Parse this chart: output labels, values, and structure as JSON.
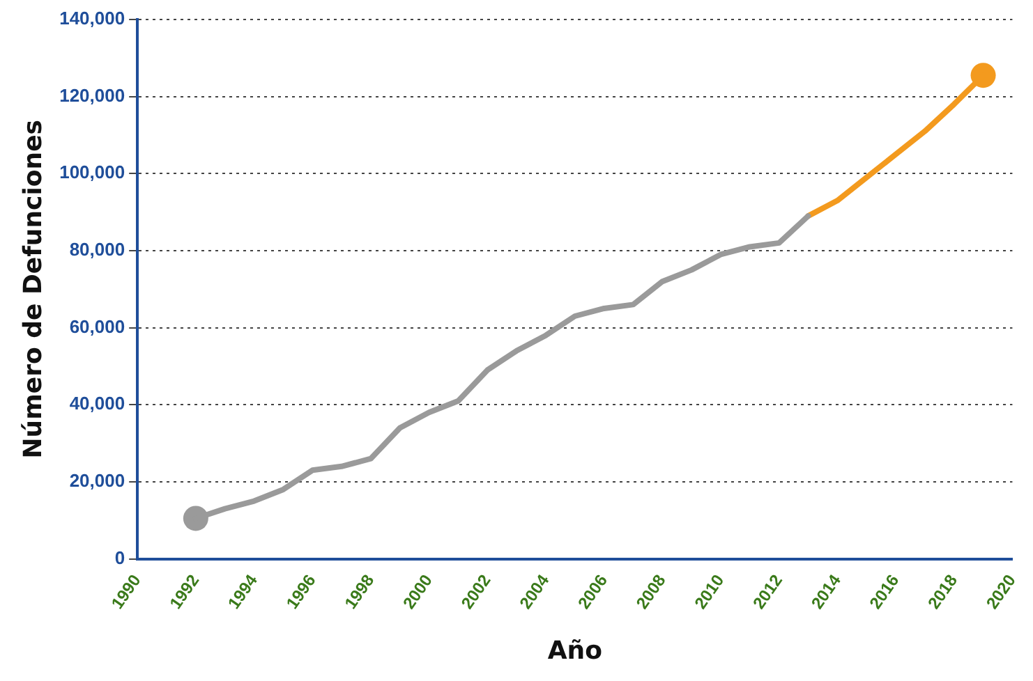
{
  "chart_data": {
    "type": "line",
    "xlabel": "Año",
    "ylabel": "Número de Defunciones",
    "series": [
      {
        "color": "#9a9a9a",
        "x": [
          1992,
          1993,
          1994,
          1995,
          1996,
          1997,
          1998,
          1999,
          2000,
          2001,
          2002,
          2003,
          2004,
          2005,
          2006,
          2007,
          2008,
          2009,
          2010,
          2011,
          2012,
          2013
        ],
        "values": [
          10500,
          13000,
          15000,
          18000,
          23000,
          24000,
          26000,
          34000,
          38000,
          41000,
          49000,
          54000,
          58000,
          63000,
          65000,
          66000,
          72000,
          75000,
          79000,
          81000,
          82000,
          89000
        ]
      },
      {
        "color": "#f39a1e",
        "x": [
          2013,
          2014,
          2015,
          2016,
          2017,
          2018,
          2019
        ],
        "values": [
          89000,
          93000,
          99000,
          105000,
          111000,
          118000,
          125500
        ]
      },
      {
        "type": "scatter",
        "marker": "circle",
        "colors": [
          "#9a9a9a",
          "#f39a1e"
        ],
        "x": [
          1992,
          2019
        ],
        "values": [
          10500,
          125500
        ]
      }
    ],
    "xlim": [
      1990,
      2020
    ],
    "xticks": [
      1990,
      1992,
      1994,
      1996,
      1998,
      2000,
      2002,
      2004,
      2006,
      2008,
      2010,
      2012,
      2014,
      2016,
      2018,
      2020
    ],
    "ylim": [
      0,
      140000
    ],
    "yticks": [
      0,
      {
        "value": 20000,
        "label": "20,000"
      },
      {
        "value": 40000,
        "label": "40,000"
      },
      {
        "value": 60000,
        "label": "60,000"
      },
      {
        "value": 80000,
        "label": "80,000"
      },
      {
        "value": 100000,
        "label": "100,000"
      },
      {
        "value": 120000,
        "label": "120,000"
      },
      {
        "value": 140000,
        "label": "140,000"
      }
    ],
    "grid": "y",
    "legend": false,
    "line_style": "solid"
  }
}
